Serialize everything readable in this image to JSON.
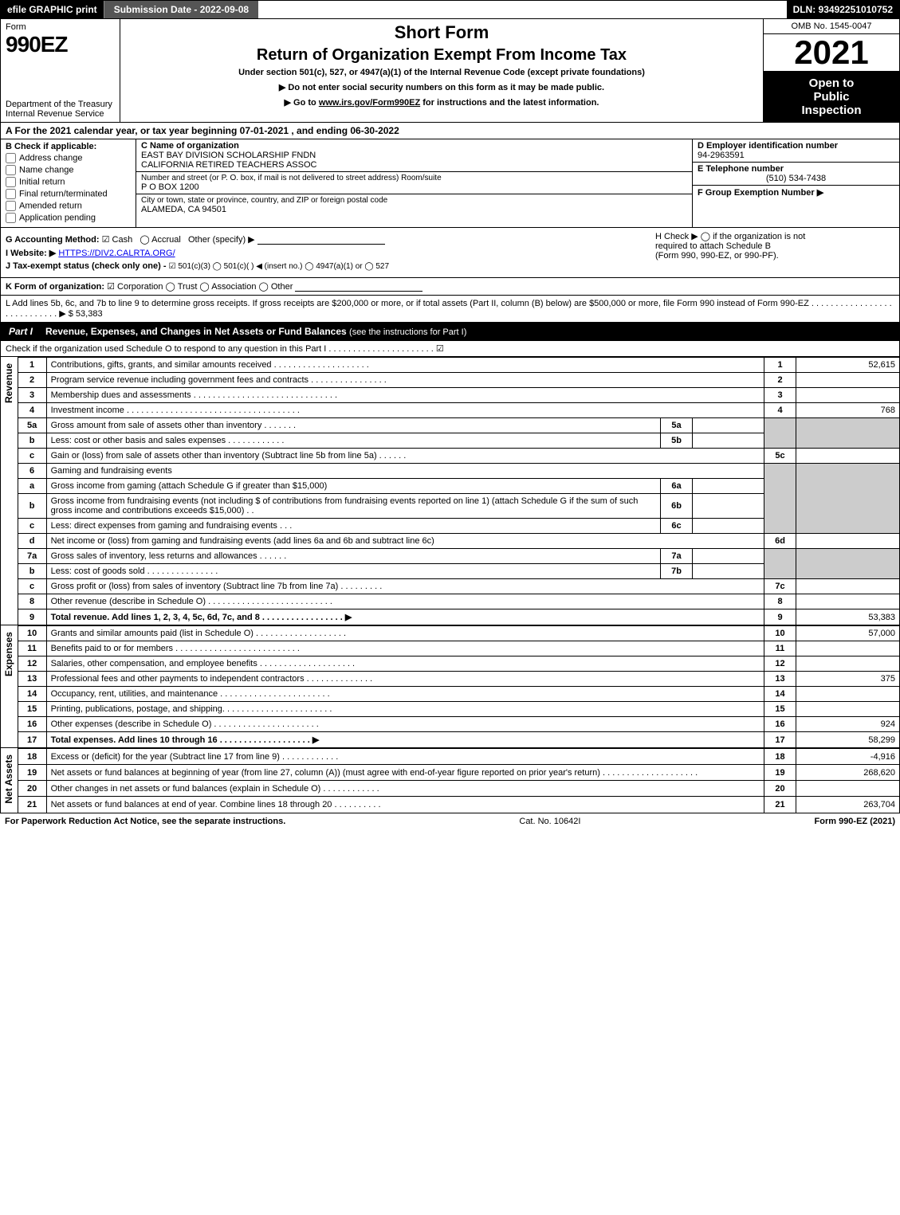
{
  "topbar": {
    "efile": "efile GRAPHIC print",
    "subdate_label": "Submission Date - 2022-09-08",
    "dln_label": "DLN: 93492251010752"
  },
  "header": {
    "form_word": "Form",
    "form_number": "990EZ",
    "dept": "Department of the Treasury\nInternal Revenue Service",
    "short_form": "Short Form",
    "return_title": "Return of Organization Exempt From Income Tax",
    "under_section": "Under section 501(c), 527, or 4947(a)(1) of the Internal Revenue Code (except private foundations)",
    "no_ssn": "▶ Do not enter social security numbers on this form as it may be made public.",
    "goto": "▶ Go to www.irs.gov/Form990EZ for instructions and the latest information.",
    "omb": "OMB No. 1545-0047",
    "year": "2021",
    "open_public_1": "Open to",
    "open_public_2": "Public",
    "open_public_3": "Inspection"
  },
  "row_a": "A  For the 2021 calendar year, or tax year beginning 07-01-2021 , and ending 06-30-2022",
  "section_b": {
    "label": "B  Check if applicable:",
    "options": [
      "Address change",
      "Name change",
      "Initial return",
      "Final return/terminated",
      "Amended return",
      "Application pending"
    ]
  },
  "section_c": {
    "name_head": "C Name of organization",
    "name_line1": "EAST BAY DIVISION SCHOLARSHIP FNDN",
    "name_line2": "CALIFORNIA RETIRED TEACHERS ASSOC",
    "street_head": "Number and street (or P. O. box, if mail is not delivered to street address)      Room/suite",
    "street": "P O BOX 1200",
    "city_head": "City or town, state or province, country, and ZIP or foreign postal code",
    "city": "ALAMEDA, CA  94501"
  },
  "section_d": {
    "label": "D Employer identification number",
    "value": "94-2963591"
  },
  "section_e": {
    "label": "E Telephone number",
    "value": "(510) 534-7438"
  },
  "section_f": {
    "label": "F Group Exemption Number  ▶",
    "value": ""
  },
  "section_g": {
    "label": "G Accounting Method:",
    "cash": "☑ Cash",
    "accrual": "◯ Accrual",
    "other": "Other (specify) ▶"
  },
  "section_h": {
    "line1": "H  Check ▶  ◯  if the organization is not",
    "line2": "required to attach Schedule B",
    "line3": "(Form 990, 990-EZ, or 990-PF)."
  },
  "section_i": {
    "label": "I Website: ▶",
    "value": "HTTPS://DIV2.CALRTA.ORG/"
  },
  "section_j": {
    "label": "J Tax-exempt status (check only one) -",
    "opts": "☑ 501(c)(3)  ◯ 501(c)(  ) ◀ (insert no.)  ◯ 4947(a)(1) or  ◯ 527"
  },
  "section_k": {
    "label": "K Form of organization:",
    "opts": "☑ Corporation   ◯ Trust   ◯ Association   ◯ Other"
  },
  "section_l": {
    "text": "L Add lines 5b, 6c, and 7b to line 9 to determine gross receipts. If gross receipts are $200,000 or more, or if total assets (Part II, column (B) below) are $500,000 or more, file Form 990 instead of Form 990-EZ  .  .  .  .  .  .  .  .  .  .  .  .  .  .  .  .  .  .  .  .  .  .  .  .  .  .  .  .  ▶ $ 53,383"
  },
  "part1": {
    "tag": "Part I",
    "title": "Revenue, Expenses, and Changes in Net Assets or Fund Balances",
    "sub": "(see the instructions for Part I)",
    "check_o": "Check if the organization used Schedule O to respond to any question in this Part I  .  .  .  .  .  .  .  .  .  .  .  .  .  .  .  .  .  .  .  .  .  .   ☑"
  },
  "revenue_label": "Revenue",
  "expenses_label": "Expenses",
  "netassets_label": "Net Assets",
  "lines": {
    "l1": {
      "num": "1",
      "desc": "Contributions, gifts, grants, and similar amounts received  .  .  .  .  .  .  .  .  .  .  .  .  .  .  .  .  .  .  .  .",
      "rnum": "1",
      "amt": "52,615"
    },
    "l2": {
      "num": "2",
      "desc": "Program service revenue including government fees and contracts  .  .  .  .  .  .  .  .  .  .  .  .  .  .  .  .",
      "rnum": "2",
      "amt": ""
    },
    "l3": {
      "num": "3",
      "desc": "Membership dues and assessments  .  .  .  .  .  .  .  .  .  .  .  .  .  .  .  .  .  .  .  .  .  .  .  .  .  .  .  .  .  .",
      "rnum": "3",
      "amt": ""
    },
    "l4": {
      "num": "4",
      "desc": "Investment income  .  .  .  .  .  .  .  .  .  .  .  .  .  .  .  .  .  .  .  .  .  .  .  .  .  .  .  .  .  .  .  .  .  .  .  .",
      "rnum": "4",
      "amt": "768"
    },
    "l5a": {
      "num": "5a",
      "desc": "Gross amount from sale of assets other than inventory  .  .  .  .  .  .  .",
      "sub": "5a",
      "subval": ""
    },
    "l5b": {
      "num": "b",
      "desc": "Less: cost or other basis and sales expenses  .  .  .  .  .  .  .  .  .  .  .  .",
      "sub": "5b",
      "subval": ""
    },
    "l5c": {
      "num": "c",
      "desc": "Gain or (loss) from sale of assets other than inventory (Subtract line 5b from line 5a)  .  .  .  .  .  .",
      "rnum": "5c",
      "amt": ""
    },
    "l6": {
      "num": "6",
      "desc": "Gaming and fundraising events"
    },
    "l6a": {
      "num": "a",
      "desc": "Gross income from gaming (attach Schedule G if greater than $15,000)",
      "sub": "6a",
      "subval": ""
    },
    "l6b": {
      "num": "b",
      "desc": "Gross income from fundraising events (not including $                     of contributions from fundraising events reported on line 1) (attach Schedule G if the sum of such gross income and contributions exceeds $15,000)   .  .",
      "sub": "6b",
      "subval": ""
    },
    "l6c": {
      "num": "c",
      "desc": "Less: direct expenses from gaming and fundraising events      .  .  .",
      "sub": "6c",
      "subval": ""
    },
    "l6d": {
      "num": "d",
      "desc": "Net income or (loss) from gaming and fundraising events (add lines 6a and 6b and subtract line 6c)",
      "rnum": "6d",
      "amt": ""
    },
    "l7a": {
      "num": "7a",
      "desc": "Gross sales of inventory, less returns and allowances  .  .  .  .  .  .",
      "sub": "7a",
      "subval": ""
    },
    "l7b": {
      "num": "b",
      "desc": "Less: cost of goods sold         .  .  .  .  .  .  .  .  .  .  .  .  .  .  .",
      "sub": "7b",
      "subval": ""
    },
    "l7c": {
      "num": "c",
      "desc": "Gross profit or (loss) from sales of inventory (Subtract line 7b from line 7a)  .  .  .  .  .  .  .  .  .",
      "rnum": "7c",
      "amt": ""
    },
    "l8": {
      "num": "8",
      "desc": "Other revenue (describe in Schedule O)  .  .  .  .  .  .  .  .  .  .  .  .  .  .  .  .  .  .  .  .  .  .  .  .  .  .",
      "rnum": "8",
      "amt": ""
    },
    "l9": {
      "num": "9",
      "desc": "Total revenue. Add lines 1, 2, 3, 4, 5c, 6d, 7c, and 8   .  .  .  .  .  .  .  .  .  .  .  .  .  .  .  .  .  ▶",
      "rnum": "9",
      "amt": "53,383",
      "bold": true
    },
    "l10": {
      "num": "10",
      "desc": "Grants and similar amounts paid (list in Schedule O)  .  .  .  .  .  .  .  .  .  .  .  .  .  .  .  .  .  .  .",
      "rnum": "10",
      "amt": "57,000"
    },
    "l11": {
      "num": "11",
      "desc": "Benefits paid to or for members     .  .  .  .  .  .  .  .  .  .  .  .  .  .  .  .  .  .  .  .  .  .  .  .  .  .",
      "rnum": "11",
      "amt": ""
    },
    "l12": {
      "num": "12",
      "desc": "Salaries, other compensation, and employee benefits  .  .  .  .  .  .  .  .  .  .  .  .  .  .  .  .  .  .  .  .",
      "rnum": "12",
      "amt": ""
    },
    "l13": {
      "num": "13",
      "desc": "Professional fees and other payments to independent contractors  .  .  .  .  .  .  .  .  .  .  .  .  .  .",
      "rnum": "13",
      "amt": "375"
    },
    "l14": {
      "num": "14",
      "desc": "Occupancy, rent, utilities, and maintenance  .  .  .  .  .  .  .  .  .  .  .  .  .  .  .  .  .  .  .  .  .  .  .",
      "rnum": "14",
      "amt": ""
    },
    "l15": {
      "num": "15",
      "desc": "Printing, publications, postage, and shipping.  .  .  .  .  .  .  .  .  .  .  .  .  .  .  .  .  .  .  .  .  .  .",
      "rnum": "15",
      "amt": ""
    },
    "l16": {
      "num": "16",
      "desc": "Other expenses (describe in Schedule O)     .  .  .  .  .  .  .  .  .  .  .  .  .  .  .  .  .  .  .  .  .  .",
      "rnum": "16",
      "amt": "924"
    },
    "l17": {
      "num": "17",
      "desc": "Total expenses. Add lines 10 through 16     .  .  .  .  .  .  .  .  .  .  .  .  .  .  .  .  .  .  .  ▶",
      "rnum": "17",
      "amt": "58,299",
      "bold": true
    },
    "l18": {
      "num": "18",
      "desc": "Excess or (deficit) for the year (Subtract line 17 from line 9)       .  .  .  .  .  .  .  .  .  .  .  .",
      "rnum": "18",
      "amt": "-4,916"
    },
    "l19": {
      "num": "19",
      "desc": "Net assets or fund balances at beginning of year (from line 27, column (A)) (must agree with end-of-year figure reported on prior year's return)  .  .  .  .  .  .  .  .  .  .  .  .  .  .  .  .  .  .  .  .",
      "rnum": "19",
      "amt": "268,620"
    },
    "l20": {
      "num": "20",
      "desc": "Other changes in net assets or fund balances (explain in Schedule O)  .  .  .  .  .  .  .  .  .  .  .  .",
      "rnum": "20",
      "amt": ""
    },
    "l21": {
      "num": "21",
      "desc": "Net assets or fund balances at end of year. Combine lines 18 through 20  .  .  .  .  .  .  .  .  .  .",
      "rnum": "21",
      "amt": "263,704"
    }
  },
  "footer": {
    "left": "For Paperwork Reduction Act Notice, see the separate instructions.",
    "center": "Cat. No. 10642I",
    "right": "Form 990-EZ (2021)"
  },
  "colors": {
    "black": "#000000",
    "grey": "#cccccc",
    "darkbar": "#555555"
  }
}
